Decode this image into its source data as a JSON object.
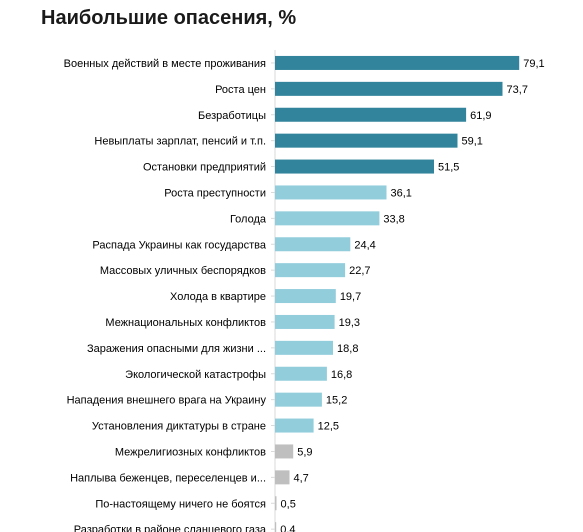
{
  "chart_data": {
    "type": "bar",
    "orientation": "horizontal",
    "title": "Наибольшие опасения, %",
    "categories": [
      "Военных действий в месте проживания",
      "Роста цен",
      "Безработицы",
      "Невыплаты зарплат, пенсий и т.п.",
      "Остановки предприятий",
      "Роста преступности",
      "Голода",
      "Распада Украины как государства",
      "Массовых уличных беспорядков",
      "Холода в квартире",
      "Межнациональных конфликтов",
      "Заражения опасными для жизни ...",
      "Экологической катастрофы",
      "Нападения внешнего врага на Украину",
      "Установления диктатуры в стране",
      "Межрелигиозных конфликтов",
      "Наплыва беженцев, переселенцев и...",
      "По-настоящему ничего не боятся",
      "Разработки в районе сланцевого газа"
    ],
    "values": [
      79.1,
      73.7,
      61.9,
      59.1,
      51.5,
      36.1,
      33.8,
      24.4,
      22.7,
      19.7,
      19.3,
      18.8,
      16.8,
      15.2,
      12.5,
      5.9,
      4.7,
      0.5,
      0.4
    ],
    "value_labels": [
      "79,1",
      "73,7",
      "61,9",
      "59,1",
      "51,5",
      "36,1",
      "33,8",
      "24,4",
      "22,7",
      "19,7",
      "19,3",
      "18,8",
      "16,8",
      "15,2",
      "12,5",
      "5,9",
      "4,7",
      "0,5",
      "0,4"
    ],
    "colors": [
      "#31849b",
      "#31849b",
      "#31849b",
      "#31849b",
      "#31849b",
      "#92cddc",
      "#92cddc",
      "#92cddc",
      "#92cddc",
      "#92cddc",
      "#92cddc",
      "#92cddc",
      "#92cddc",
      "#92cddc",
      "#92cddc",
      "#bfbfbf",
      "#bfbfbf",
      "#bfbfbf",
      "#bfbfbf"
    ],
    "xlim": [
      0,
      80
    ],
    "grid": false,
    "legend": "none"
  }
}
